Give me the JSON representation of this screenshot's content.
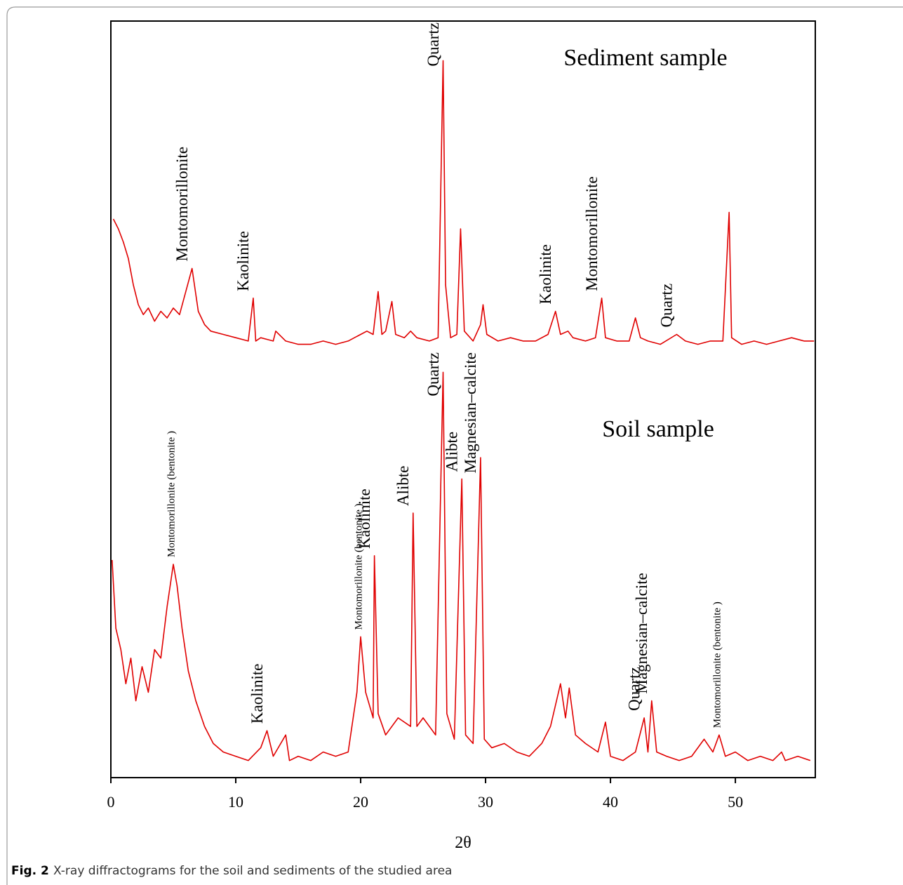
{
  "chart_data": [
    {
      "type": "line",
      "title": "Sediment sample",
      "color": "#e00000",
      "xlim": [
        0,
        56.4
      ],
      "ylim": [
        0,
        100
      ],
      "x": [
        0.2,
        0.6,
        1.0,
        1.4,
        1.8,
        2.2,
        2.6,
        3.0,
        3.5,
        4.0,
        4.5,
        5.0,
        5.5,
        6.0,
        6.5,
        7.0,
        7.5,
        8.0,
        9.0,
        10.0,
        11.0,
        11.4,
        11.6,
        12.0,
        13.0,
        13.2,
        14.0,
        15.0,
        16.0,
        17.0,
        18.0,
        19.0,
        20.0,
        20.5,
        21.0,
        21.4,
        21.7,
        22.0,
        22.5,
        22.8,
        23.5,
        24.0,
        24.5,
        25.5,
        26.2,
        26.6,
        26.8,
        27.2,
        27.7,
        28.0,
        28.3,
        29.0,
        29.6,
        29.8,
        30.1,
        31.0,
        32.0,
        33.0,
        34.0,
        35.0,
        35.6,
        36.0,
        36.6,
        37.0,
        38.0,
        38.8,
        39.3,
        39.6,
        40.5,
        41.5,
        42.0,
        42.4,
        43.0,
        44.0,
        45.3,
        46.0,
        47.0,
        48.0,
        49.0,
        49.5,
        49.7,
        50.5,
        51.5,
        52.5,
        53.5,
        54.5,
        55.5,
        56.3
      ],
      "values": [
        40,
        37,
        33,
        28,
        20,
        14,
        11,
        13,
        9,
        12,
        10,
        13,
        11,
        18,
        25,
        12,
        8,
        6,
        5,
        4,
        3,
        16,
        3,
        4,
        3,
        6,
        3,
        2,
        2,
        3,
        2,
        3,
        5,
        6,
        5,
        18,
        5,
        6,
        15,
        5,
        4,
        6,
        4,
        3,
        4,
        88,
        20,
        4,
        5,
        37,
        6,
        3,
        8,
        14,
        5,
        3,
        4,
        3,
        3,
        5,
        12,
        5,
        6,
        4,
        3,
        4,
        16,
        4,
        3,
        3,
        10,
        4,
        3,
        2,
        5,
        3,
        2,
        3,
        3,
        42,
        4,
        2,
        3,
        2,
        3,
        4,
        3,
        3
      ],
      "peak_labels": [
        {
          "label": "Montomorillonite",
          "x": 6.5
        },
        {
          "label": "Kaolinite",
          "x": 11.4
        },
        {
          "label": "Quartz",
          "x": 26.6
        },
        {
          "label": "Kaolinite",
          "x": 35.6
        },
        {
          "label": "Montomorillonite",
          "x": 39.3
        },
        {
          "label": "Quartz",
          "x": 45.3
        }
      ]
    },
    {
      "type": "line",
      "title": "Soil sample",
      "color": "#e00000",
      "xlabel": "2θ",
      "xlim": [
        0,
        56.4
      ],
      "ylim": [
        0,
        100
      ],
      "xticks": [
        0,
        10,
        20,
        30,
        40,
        50
      ],
      "x": [
        0.1,
        0.4,
        0.8,
        1.2,
        1.6,
        2.0,
        2.5,
        3.0,
        3.5,
        4.0,
        4.5,
        5.0,
        5.3,
        5.7,
        6.2,
        6.8,
        7.5,
        8.2,
        9.0,
        10.0,
        11.0,
        12.0,
        12.5,
        13.0,
        14.0,
        14.3,
        15.0,
        16.0,
        17.0,
        18.0,
        19.0,
        19.7,
        20.0,
        20.4,
        21.0,
        21.1,
        21.4,
        22.0,
        23.0,
        24.0,
        24.2,
        24.5,
        25.0,
        26.0,
        26.6,
        26.9,
        27.5,
        28.1,
        28.4,
        29.0,
        29.6,
        29.9,
        30.5,
        31.5,
        32.5,
        33.5,
        34.5,
        35.2,
        36.0,
        36.4,
        36.7,
        37.2,
        38.0,
        39.0,
        39.6,
        40.0,
        41.0,
        42.0,
        42.7,
        43.0,
        43.3,
        43.7,
        44.5,
        45.5,
        46.5,
        47.5,
        48.2,
        48.7,
        49.2,
        50.0,
        51.0,
        52.0,
        53.0,
        53.7,
        54.0,
        55.0,
        56.0
      ],
      "values": [
        51,
        35,
        30,
        22,
        28,
        18,
        26,
        20,
        30,
        28,
        40,
        50,
        45,
        35,
        25,
        18,
        12,
        8,
        6,
        5,
        4,
        7,
        11,
        5,
        10,
        4,
        5,
        4,
        6,
        5,
        6,
        20,
        33,
        20,
        14,
        52,
        15,
        10,
        14,
        12,
        62,
        12,
        14,
        10,
        95,
        15,
        9,
        70,
        10,
        8,
        75,
        9,
        7,
        8,
        6,
        5,
        8,
        12,
        22,
        14,
        21,
        10,
        8,
        6,
        13,
        5,
        4,
        6,
        14,
        6,
        18,
        6,
        5,
        4,
        5,
        9,
        6,
        10,
        5,
        6,
        4,
        5,
        4,
        6,
        4,
        5,
        4
      ],
      "peak_labels": [
        {
          "label": "Montomorillonite (bentonite )",
          "x": 5.0
        },
        {
          "label": "Kaolinite",
          "x": 12.5
        },
        {
          "label": "Montomorillonite (bentonite )",
          "x": 20.0
        },
        {
          "label": "Kaolinite",
          "x": 21.1
        },
        {
          "label": "Alibte",
          "x": 24.2
        },
        {
          "label": "Quartz",
          "x": 26.6
        },
        {
          "label": "Alibte",
          "x": 28.1
        },
        {
          "label": "Magnesian–calcite",
          "x": 29.6
        },
        {
          "label": "Quartz",
          "x": 42.7
        },
        {
          "label": "Magnesian–calcite",
          "x": 43.3
        },
        {
          "label": "Montomorillonite (bentonite )",
          "x": 48.7
        }
      ]
    }
  ],
  "caption": {
    "label": "Fig. 2",
    "text": "X-ray diffractograms for the soil and sediments of the studied area"
  }
}
